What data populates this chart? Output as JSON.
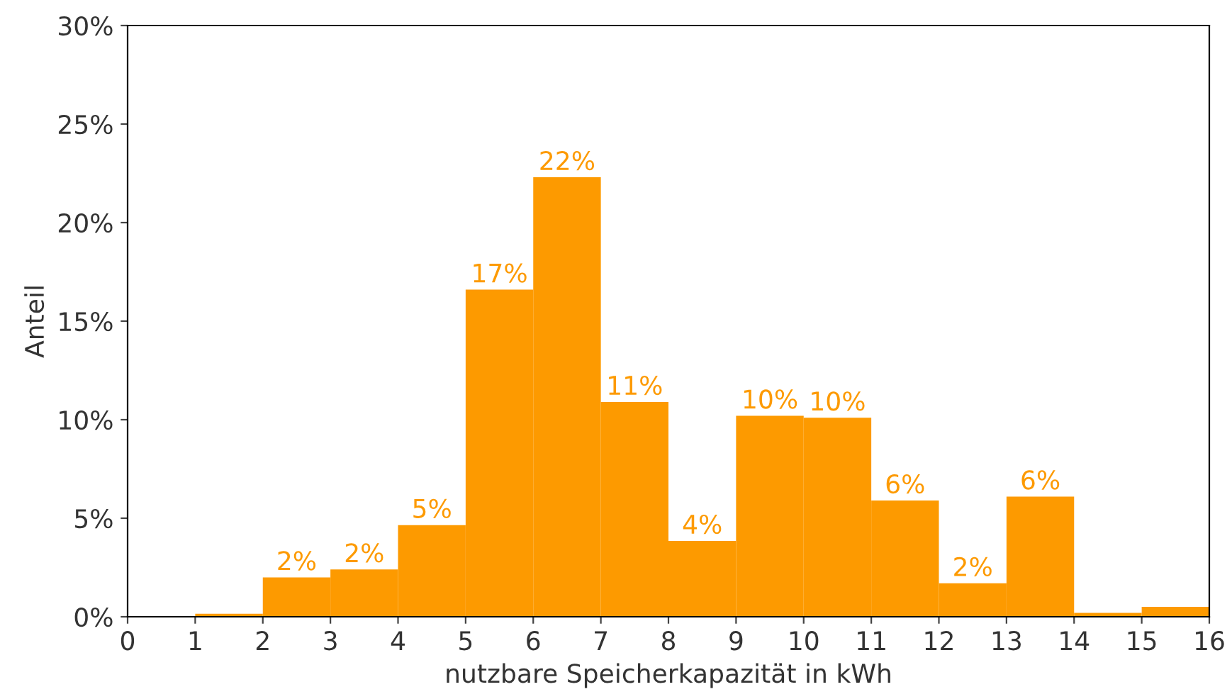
{
  "chart_data": {
    "type": "histogram",
    "xlabel": "nutzbare Speicherkapazität in kWh",
    "ylabel": "Anteil",
    "bins": [
      0,
      1,
      2,
      3,
      4,
      5,
      6,
      7,
      8,
      9,
      10,
      11,
      12,
      13,
      14,
      15,
      16
    ],
    "values": [
      0,
      0.15,
      2.0,
      2.4,
      4.65,
      16.6,
      22.3,
      10.9,
      3.85,
      10.2,
      10.1,
      5.9,
      1.7,
      6.1,
      0.2,
      0.5
    ],
    "value_labels": [
      null,
      null,
      "2%",
      "2%",
      "5%",
      "17%",
      "22%",
      "11%",
      "4%",
      "10%",
      "10%",
      "6%",
      "2%",
      "6%",
      null,
      null
    ],
    "color": "#fd9a00",
    "xlim": [
      0,
      16
    ],
    "xticks": [
      0,
      1,
      2,
      3,
      4,
      5,
      6,
      7,
      8,
      9,
      10,
      11,
      12,
      13,
      14,
      15,
      16
    ],
    "ylim": [
      0,
      30
    ],
    "yticks": [
      {
        "value": 0,
        "label": "0%"
      },
      {
        "value": 5,
        "label": "5%"
      },
      {
        "value": 10,
        "label": "10%"
      },
      {
        "value": 15,
        "label": "15%"
      },
      {
        "value": 20,
        "label": "20%"
      },
      {
        "value": 25,
        "label": "25%"
      },
      {
        "value": 30,
        "label": "30%"
      }
    ],
    "grid": false,
    "legend": false
  }
}
